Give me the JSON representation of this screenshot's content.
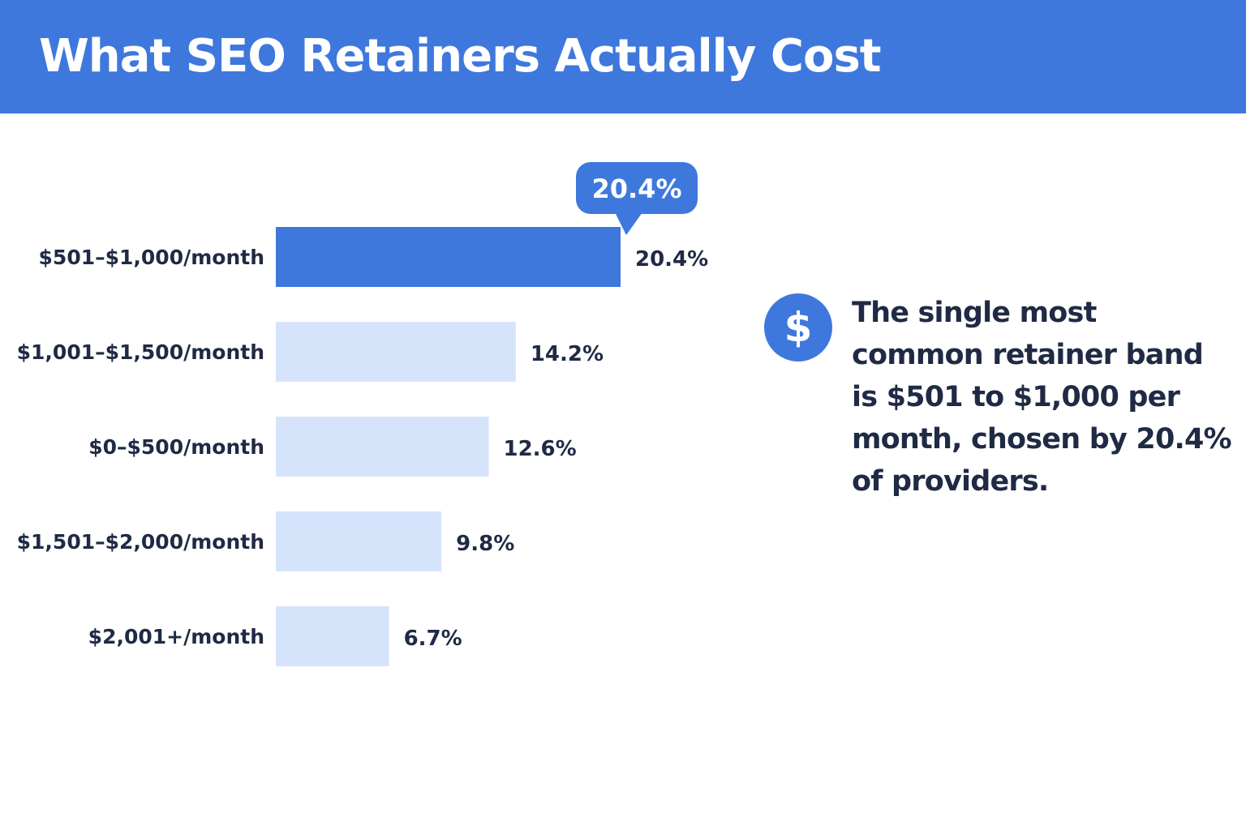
{
  "header": {
    "title": "What SEO Retainers Actually Cost"
  },
  "chart_data": {
    "type": "bar",
    "orientation": "horizontal",
    "categories": [
      "$501–$1,000/month",
      "$1,001–$1,500/month",
      "$0–$500/month",
      "$1,501–$2,000/month",
      "$2,001+/month"
    ],
    "values": [
      20.4,
      14.2,
      12.6,
      9.8,
      6.7
    ],
    "value_labels": [
      "20.4%",
      "14.2%",
      "12.6%",
      "9.8%",
      "6.7%"
    ],
    "highlight_index": 0,
    "callout_label": "20.4%",
    "unit": "%",
    "grid": false,
    "colors": {
      "highlight": "#3f78dd",
      "bar": "#d6e4fb",
      "text": "#1f2a44"
    }
  },
  "note": {
    "icon": "dollar-icon",
    "icon_glyph": "$",
    "text": "The single most common retainer band is $501 to $1,000 per month, chosen by 20.4% of providers."
  }
}
